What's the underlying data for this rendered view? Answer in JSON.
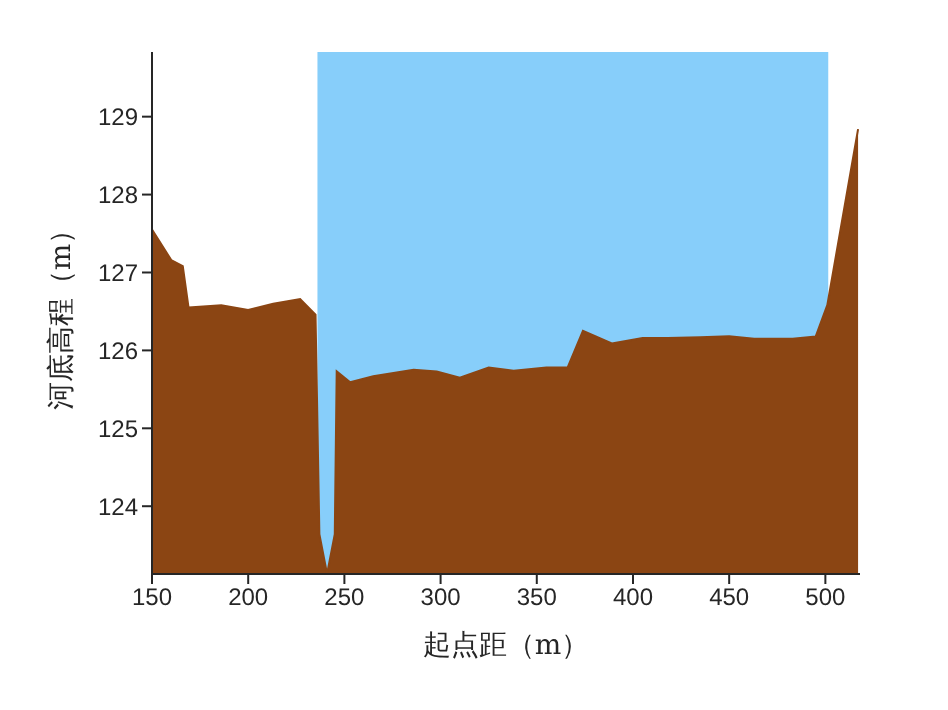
{
  "chart_data": {
    "type": "area",
    "xlabel": "起点距（m）",
    "ylabel": "河底高程（m）",
    "x": [
      150,
      160,
      166,
      169,
      186,
      200,
      213,
      227,
      235,
      237,
      241,
      245,
      246,
      253,
      265,
      286,
      298,
      310,
      325,
      338,
      355,
      366,
      374,
      389,
      405,
      418,
      435,
      450,
      463,
      483,
      495,
      501,
      517
    ],
    "series": [
      {
        "color": "#8b4513",
        "values": [
          127.55,
          127.16,
          127.08,
          126.55,
          126.58,
          126.52,
          126.6,
          126.66,
          126.46,
          123.64,
          123.13,
          123.64,
          125.73,
          125.59,
          125.67,
          125.75,
          125.73,
          125.65,
          125.78,
          125.74,
          125.78,
          125.78,
          126.25,
          126.09,
          126.16,
          126.16,
          126.17,
          126.18,
          126.15,
          126.15,
          126.18,
          126.58,
          128.84
        ]
      }
    ],
    "bands": [
      {
        "axis": "x",
        "from": 236,
        "to": 501.5,
        "color": "#87cefa"
      }
    ],
    "xlim": [
      150,
      518
    ],
    "xticks": [
      150,
      200,
      250,
      300,
      350,
      400,
      450,
      500
    ],
    "ylim": [
      123.13,
      129.83
    ],
    "yticks": [
      124,
      125,
      126,
      127,
      128,
      129
    ],
    "grid": false,
    "legend": false
  }
}
